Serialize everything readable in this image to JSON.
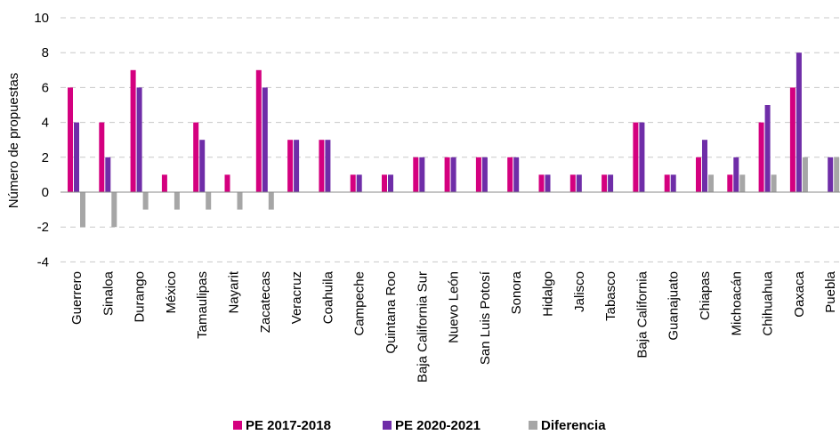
{
  "chart_data": {
    "type": "bar",
    "title": "",
    "xlabel": "",
    "ylabel": "Número de propuestas",
    "ylim": [
      -4,
      10
    ],
    "yticks": [
      -4,
      -2,
      0,
      2,
      4,
      6,
      8,
      10
    ],
    "grid": true,
    "legend_position": "bottom",
    "categories": [
      "Guerrero",
      "Sinaloa",
      "Durango",
      "México",
      "Tamaulipas",
      "Nayarit",
      "Zacatecas",
      "Veracruz",
      "Coahuila",
      "Campeche",
      "Quintana Roo",
      "Baja California Sur",
      "Nuevo León",
      "San Luis Potosí",
      "Sonora",
      "Hidalgo",
      "Jalisco",
      "Tabasco",
      "Baja California",
      "Guanajuato",
      "Chiapas",
      "Michoacán",
      "Chihuahua",
      "Oaxaca",
      "Puebla"
    ],
    "series": [
      {
        "name": "PE 2017-2018",
        "color": "#d4007f",
        "values": [
          6,
          4,
          7,
          1,
          4,
          1,
          7,
          3,
          3,
          1,
          1,
          2,
          2,
          2,
          2,
          1,
          1,
          1,
          4,
          1,
          2,
          1,
          4,
          6,
          0
        ]
      },
      {
        "name": "PE 2020-2021",
        "color": "#6f2da8",
        "values": [
          4,
          2,
          6,
          0,
          3,
          0,
          6,
          3,
          3,
          1,
          1,
          2,
          2,
          2,
          2,
          1,
          1,
          1,
          4,
          1,
          3,
          2,
          5,
          8,
          2
        ]
      },
      {
        "name": "Diferencia",
        "color": "#a6a6a6",
        "values": [
          -2,
          -2,
          -1,
          -1,
          -1,
          -1,
          -1,
          0,
          0,
          0,
          0,
          0,
          0,
          0,
          0,
          0,
          0,
          0,
          0,
          0,
          1,
          1,
          1,
          2,
          2
        ]
      }
    ]
  }
}
